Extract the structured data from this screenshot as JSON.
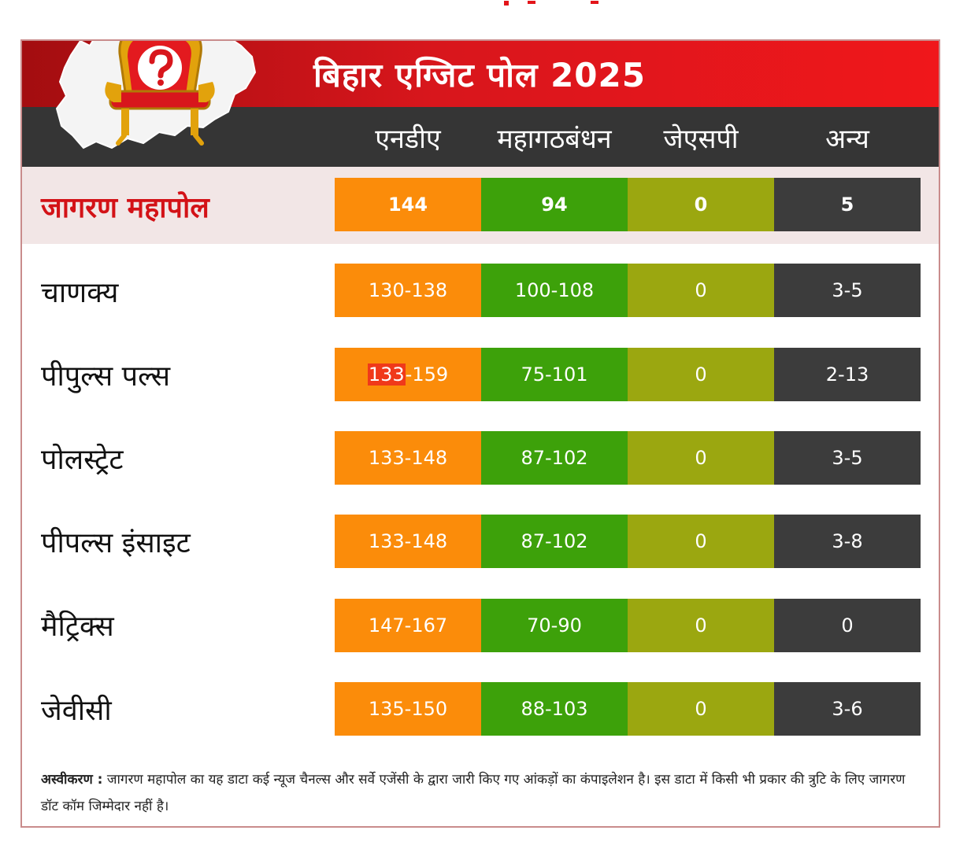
{
  "title": "बिहार एग्जिट पोल 2025",
  "columns": [
    "एनडीए",
    "महागठबंधन",
    "जेएसपी",
    "अन्य"
  ],
  "colors": {
    "title_red": "#e3151a",
    "header_dark": "#353535",
    "nda": "#fb8c0a",
    "mahagathbandhan": "#3da10a",
    "jsp": "#9ba710",
    "others": "#3c3c3c",
    "featured_label": "#d31217",
    "highlight": "#f0391a"
  },
  "rows": [
    {
      "label": "जागरण महापोल",
      "nda": "144",
      "mgb": "94",
      "jsp": "0",
      "oth": "5"
    },
    {
      "label": "चाणक्य",
      "nda": "130-138",
      "mgb": "100-108",
      "jsp": "0",
      "oth": "3-5"
    },
    {
      "label": "पीपुल्स पल्स",
      "nda_low": "133",
      "nda_high": "-159",
      "mgb": "75-101",
      "jsp": "0",
      "oth": "2-13"
    },
    {
      "label": "पोलस्ट्रेट",
      "nda": "133-148",
      "mgb": "87-102",
      "jsp": "0",
      "oth": "3-5"
    },
    {
      "label": "पीपल्स इंसाइट",
      "nda": "133-148",
      "mgb": "87-102",
      "jsp": "0",
      "oth": "3-8"
    },
    {
      "label": "मैट्रिक्स",
      "nda": "147-167",
      "mgb": "70-90",
      "jsp": "0",
      "oth": "0"
    },
    {
      "label": "जेवीसी",
      "nda": "135-150",
      "mgb": "88-103",
      "jsp": "0",
      "oth": "3-6"
    }
  ],
  "disclaimer": {
    "label": "अस्वीकरण :",
    "text": " जागरण महापोल का यह डाटा कई न्यूज चैनल्स और सर्वे एजेंसी के द्वारा जारी किए गए आंकड़ों का कंपाइलेशन है। इस डाटा में किसी भी प्रकार की त्रुटि के लिए जागरण डॉट कॉम जिम्मेदार नहीं है।"
  },
  "chart_data": {
    "type": "table",
    "title": "बिहार एग्जिट पोल 2025",
    "categories": [
      "जागरण महापोल",
      "चाणक्य",
      "पीपुल्स पल्स",
      "पोलस्ट्रेट",
      "पीपल्स इंसाइट",
      "मैट्रिक्स",
      "जेवीसी"
    ],
    "series": [
      {
        "name": "एनडीए",
        "values": [
          "144",
          "130-138",
          "133-159",
          "133-148",
          "133-148",
          "147-167",
          "135-150"
        ]
      },
      {
        "name": "महागठबंधन",
        "values": [
          "94",
          "100-108",
          "75-101",
          "87-102",
          "87-102",
          "70-90",
          "88-103"
        ]
      },
      {
        "name": "जेएसपी",
        "values": [
          "0",
          "0",
          "0",
          "0",
          "0",
          "0",
          "0"
        ]
      },
      {
        "name": "अन्य",
        "values": [
          "5",
          "3-5",
          "2-13",
          "3-5",
          "3-8",
          "0",
          "3-6"
        ]
      }
    ]
  }
}
